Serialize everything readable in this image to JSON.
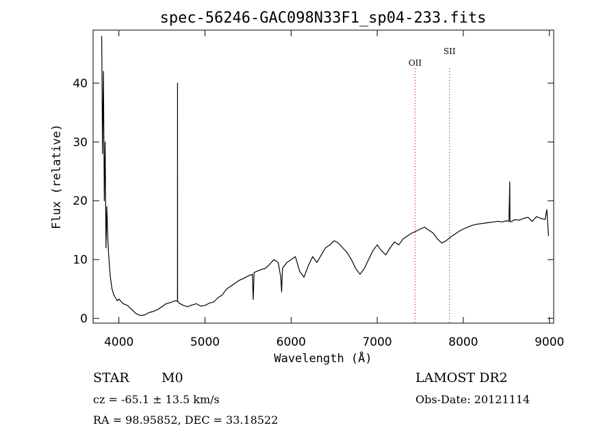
{
  "chart_data": {
    "type": "line",
    "title": "spec-56246-GAC098N33F1_sp04-233.fits",
    "xlabel": "Wavelength (Å)",
    "ylabel": "Flux (relative)",
    "xlim": [
      3700,
      9050
    ],
    "ylim": [
      -0.8,
      49
    ],
    "x_ticks": [
      4000,
      5000,
      6000,
      7000,
      8000,
      9000
    ],
    "y_ticks": [
      0,
      10,
      20,
      30,
      40
    ],
    "series": [
      {
        "x": [
          3800,
          3810,
          3820,
          3830,
          3840,
          3850,
          3860,
          3870,
          3880,
          3890,
          3900,
          3920,
          3940,
          3960,
          3980,
          4000,
          4050,
          4100,
          4150,
          4200,
          4250,
          4300,
          4350,
          4400,
          4450,
          4500,
          4550,
          4600,
          4650,
          4680,
          4681,
          4682,
          4700,
          4750,
          4800,
          4850,
          4900,
          4950,
          5000,
          5050,
          5100,
          5150,
          5200,
          5250,
          5300,
          5350,
          5400,
          5450,
          5500,
          5550,
          5560,
          5570,
          5600,
          5650,
          5700,
          5750,
          5800,
          5850,
          5880,
          5890,
          5900,
          5950,
          6000,
          6050,
          6100,
          6150,
          6200,
          6250,
          6300,
          6350,
          6400,
          6450,
          6500,
          6550,
          6600,
          6650,
          6700,
          6750,
          6800,
          6850,
          6900,
          6950,
          7000,
          7050,
          7100,
          7150,
          7200,
          7250,
          7300,
          7350,
          7400,
          7450,
          7500,
          7550,
          7600,
          7650,
          7700,
          7750,
          7800,
          7850,
          7900,
          7950,
          8000,
          8050,
          8100,
          8150,
          8200,
          8250,
          8300,
          8350,
          8400,
          8450,
          8500,
          8530,
          8540,
          8542,
          8550,
          8600,
          8650,
          8700,
          8750,
          8800,
          8850,
          8900,
          8950,
          8970,
          8990
        ],
        "y": [
          48,
          28,
          42,
          20,
          30,
          12,
          19,
          14,
          11,
          9,
          7,
          5,
          4,
          3.5,
          3,
          3.3,
          2.5,
          2.2,
          1.5,
          0.8,
          0.5,
          0.6,
          1,
          1.2,
          1.5,
          2,
          2.5,
          2.7,
          3,
          2.9,
          40,
          3,
          2.6,
          2.2,
          2,
          2.3,
          2.5,
          2.1,
          2.2,
          2.6,
          2.8,
          3.5,
          4,
          5,
          5.5,
          6,
          6.5,
          6.8,
          7.2,
          7.5,
          3.2,
          7.8,
          8,
          8.3,
          8.5,
          9.2,
          10,
          9.5,
          7,
          4.5,
          8.5,
          9.5,
          10,
          10.5,
          8,
          7,
          9,
          10.5,
          9.5,
          10.8,
          12,
          12.5,
          13.2,
          12.8,
          12,
          11.2,
          10,
          8.5,
          7.5,
          8.5,
          10,
          11.5,
          12.5,
          11.5,
          10.8,
          12,
          13,
          12.5,
          13.5,
          14,
          14.5,
          14.8,
          15.2,
          15.5,
          15,
          14.5,
          13.5,
          12.8,
          13.2,
          13.8,
          14.3,
          14.8,
          15.2,
          15.5,
          15.8,
          16,
          16.1,
          16.2,
          16.3,
          16.4,
          16.5,
          16.4,
          16.6,
          16.5,
          23.2,
          16.5,
          16.4,
          16.8,
          16.7,
          17,
          17.2,
          16.5,
          17.3,
          17,
          16.8,
          18.5,
          14
        ]
      }
    ],
    "reference_lines": [
      {
        "label": "OII",
        "x": 7440,
        "color": "#ff0000",
        "style": "dotted"
      },
      {
        "label": "SII",
        "x": 7840,
        "color": "#ff0000",
        "style": "dotted"
      }
    ],
    "line_color": "#000000",
    "grid": false
  },
  "info": {
    "object_class": "STAR",
    "subclass": "M0",
    "survey": "LAMOST DR2",
    "cz": "cz = -65.1 ± 13.5 km/s",
    "obs_date": "Obs-Date: 20121114",
    "coords": "RA =  98.95852, DEC =  33.18522"
  }
}
